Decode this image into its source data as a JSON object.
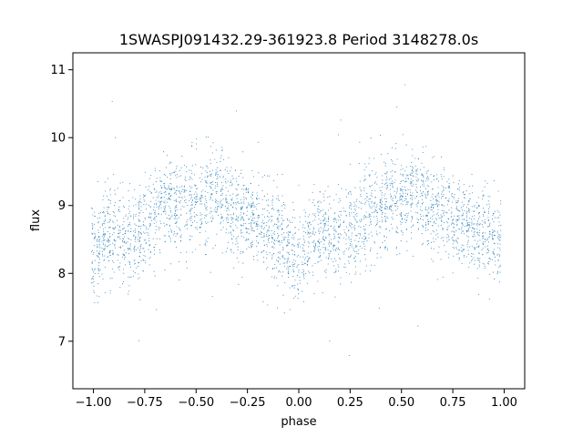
{
  "chart_data": {
    "type": "scatter",
    "title": "1SWASPJ091432.29-361923.8 Period 3148278.0s",
    "xlabel": "phase",
    "ylabel": "flux",
    "xlim": [
      -1.1,
      1.1
    ],
    "ylim": [
      6.3,
      11.25
    ],
    "grid": false,
    "legend": "none",
    "marker_color": "#1f77b4",
    "x_ticks": [
      {
        "value": -1.0,
        "label": "−1.00"
      },
      {
        "value": -0.75,
        "label": "−0.75"
      },
      {
        "value": -0.5,
        "label": "−0.50"
      },
      {
        "value": -0.25,
        "label": "−0.25"
      },
      {
        "value": 0.0,
        "label": "0.00"
      },
      {
        "value": 0.25,
        "label": "0.25"
      },
      {
        "value": 0.5,
        "label": "0.50"
      },
      {
        "value": 0.75,
        "label": "0.75"
      },
      {
        "value": 1.0,
        "label": "1.00"
      }
    ],
    "y_ticks": [
      {
        "value": 7,
        "label": "7"
      },
      {
        "value": 8,
        "label": "8"
      },
      {
        "value": 9,
        "label": "9"
      },
      {
        "value": 10,
        "label": "10"
      },
      {
        "value": 11,
        "label": "11"
      }
    ],
    "series": [
      {
        "values_description": "phase-folded light curve, mirrored over phase -1 to 1",
        "x": [
          -1.0,
          -0.95,
          -0.9,
          -0.85,
          -0.8,
          -0.75,
          -0.7,
          -0.65,
          -0.6,
          -0.55,
          -0.5,
          -0.45,
          -0.4,
          -0.35,
          -0.3,
          -0.25,
          -0.2,
          -0.15,
          -0.1,
          -0.05,
          0.0,
          0.05,
          0.1,
          0.15,
          0.2,
          0.25,
          0.3,
          0.35,
          0.4,
          0.45,
          0.5,
          0.55,
          0.6,
          0.65,
          0.7,
          0.75,
          0.8,
          0.85,
          0.9,
          0.95,
          1.0
        ],
        "y_median": [
          8.3,
          8.55,
          8.6,
          8.5,
          8.55,
          8.65,
          8.9,
          9.05,
          9.0,
          9.05,
          9.0,
          9.1,
          9.15,
          9.0,
          8.85,
          8.9,
          8.75,
          8.65,
          8.55,
          8.35,
          8.2,
          8.4,
          8.6,
          8.5,
          8.55,
          8.65,
          8.75,
          9.0,
          8.95,
          9.05,
          9.05,
          9.1,
          9.05,
          8.95,
          8.85,
          8.85,
          8.75,
          8.65,
          8.6,
          8.5,
          8.35
        ]
      }
    ]
  }
}
